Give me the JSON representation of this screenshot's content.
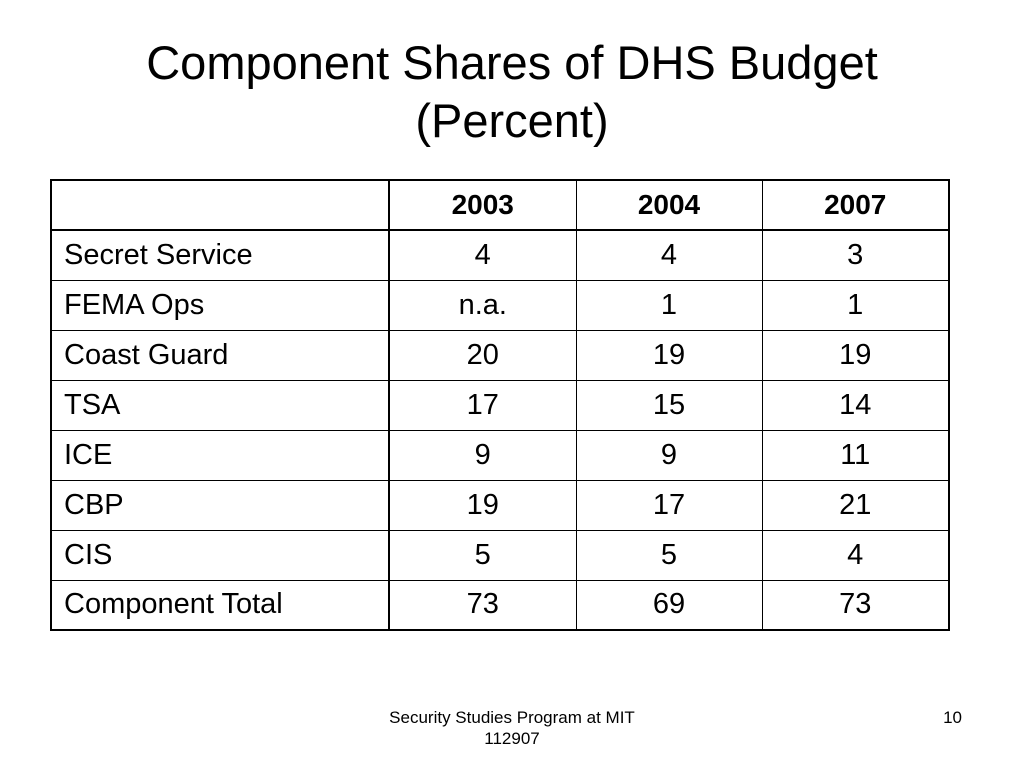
{
  "slide": {
    "title_line1": "Component Shares of DHS Budget",
    "title_line2": "(Percent)"
  },
  "table": {
    "corner": "",
    "columns": [
      "2003",
      "2004",
      "2007"
    ],
    "rows": [
      {
        "label": "Secret Service",
        "values": [
          "4",
          "4",
          "3"
        ]
      },
      {
        "label": "FEMA Ops",
        "values": [
          "n.a.",
          "1",
          "1"
        ]
      },
      {
        "label": "Coast Guard",
        "values": [
          "20",
          "19",
          "19"
        ]
      },
      {
        "label": "TSA",
        "values": [
          "17",
          "15",
          "14"
        ]
      },
      {
        "label": "ICE",
        "values": [
          "9",
          "9",
          "11"
        ]
      },
      {
        "label": "CBP",
        "values": [
          "19",
          "17",
          "21"
        ]
      },
      {
        "label": "CIS",
        "values": [
          "5",
          "5",
          "4"
        ]
      },
      {
        "label": "Component Total",
        "values": [
          "73",
          "69",
          "73"
        ]
      }
    ]
  },
  "footer": {
    "line1": "Security Studies Program at MIT",
    "line2": "112907",
    "page_number": "10"
  }
}
